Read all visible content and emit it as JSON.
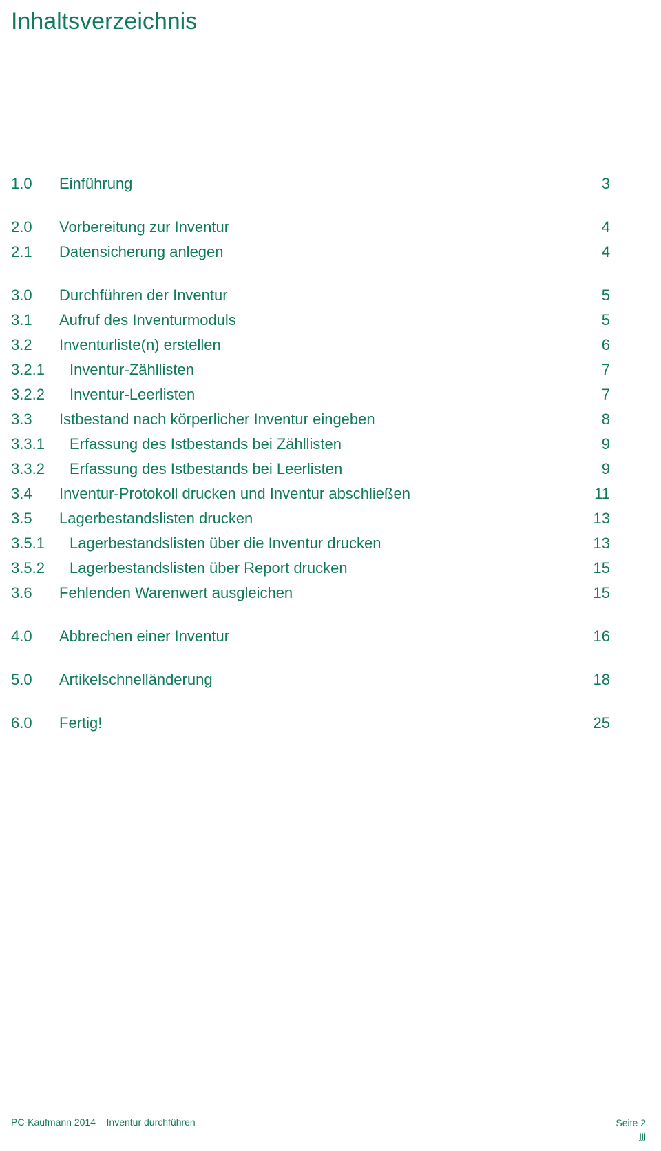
{
  "title": "Inhaltsverzeichnis",
  "colors": {
    "text": "#117a5b",
    "background": "#ffffff"
  },
  "toc": {
    "groups": [
      {
        "entries": [
          {
            "num": "1.0",
            "title": "Einführung",
            "page": "3",
            "indent": 0
          }
        ]
      },
      {
        "entries": [
          {
            "num": "2.0",
            "title": "Vorbereitung zur Inventur",
            "page": "4",
            "indent": 0
          },
          {
            "num": "2.1",
            "title": "Datensicherung anlegen",
            "page": "4",
            "indent": 1
          }
        ]
      },
      {
        "entries": [
          {
            "num": "3.0",
            "title": "Durchführen der Inventur",
            "page": "5",
            "indent": 0
          },
          {
            "num": "3.1",
            "title": "Aufruf des Inventurmoduls",
            "page": "5",
            "indent": 1
          },
          {
            "num": "3.2",
            "title": "Inventurliste(n) erstellen",
            "page": "6",
            "indent": 1
          },
          {
            "num": "3.2.1",
            "title": "Inventur-Zähllisten",
            "page": "7",
            "indent": 2
          },
          {
            "num": "3.2.2",
            "title": "Inventur-Leerlisten",
            "page": "7",
            "indent": 2
          },
          {
            "num": "3.3",
            "title": "Istbestand nach körperlicher Inventur eingeben",
            "page": "8",
            "indent": 1
          },
          {
            "num": "3.3.1",
            "title": "Erfassung des Istbestands bei Zähllisten",
            "page": "9",
            "indent": 2
          },
          {
            "num": "3.3.2",
            "title": "Erfassung des Istbestands bei Leerlisten",
            "page": "9",
            "indent": 2
          },
          {
            "num": "3.4",
            "title": "Inventur-Protokoll drucken und Inventur abschließen",
            "page": "11",
            "indent": 1
          },
          {
            "num": "3.5",
            "title": "Lagerbestandslisten drucken",
            "page": "13",
            "indent": 1
          },
          {
            "num": "3.5.1",
            "title": "Lagerbestandslisten über die Inventur drucken",
            "page": "13",
            "indent": 2
          },
          {
            "num": "3.5.2",
            "title": "Lagerbestandslisten über Report drucken",
            "page": "15",
            "indent": 2
          },
          {
            "num": "3.6",
            "title": "Fehlenden Warenwert ausgleichen",
            "page": "15",
            "indent": 1
          }
        ]
      },
      {
        "entries": [
          {
            "num": "4.0",
            "title": "Abbrechen einer Inventur",
            "page": "16",
            "indent": 0
          }
        ]
      },
      {
        "entries": [
          {
            "num": "5.0",
            "title": "Artikelschnelländerung",
            "page": "18",
            "indent": 0
          }
        ]
      },
      {
        "entries": [
          {
            "num": "6.0",
            "title": "Fertig!",
            "page": "25",
            "indent": 0
          }
        ]
      }
    ]
  },
  "footer": {
    "left": "PC-Kaufmann 2014 – Inventur durchführen",
    "page_label": "Seite 2",
    "mark": "jjj"
  }
}
